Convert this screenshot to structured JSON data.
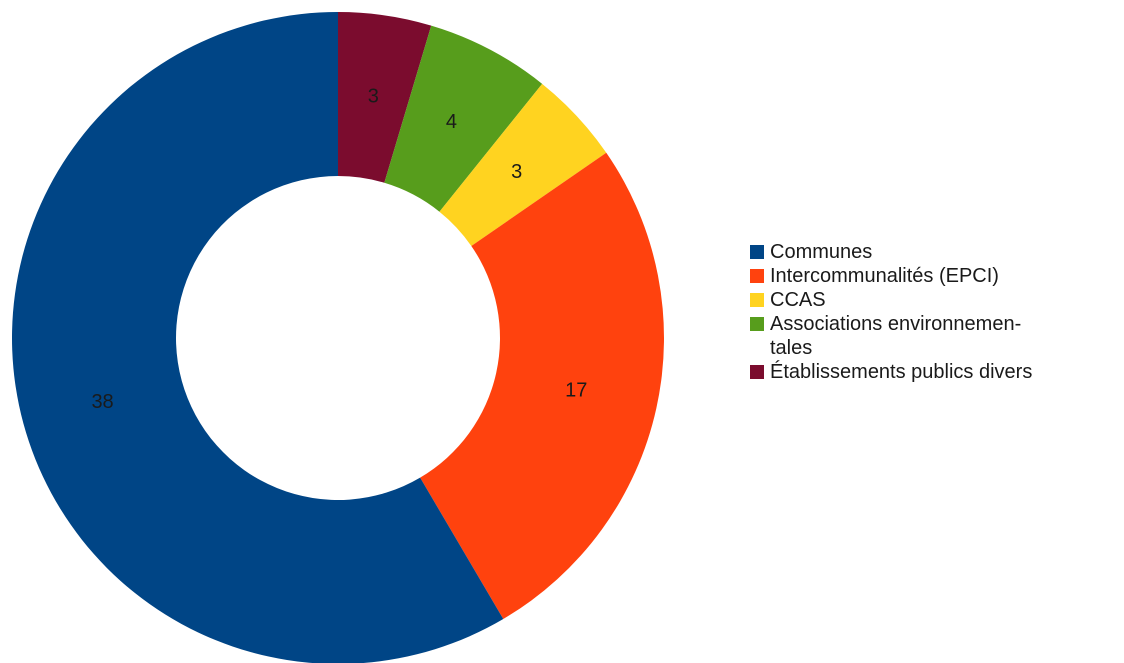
{
  "chart_data": {
    "type": "pie",
    "donut": true,
    "start_angle_deg": 0,
    "direction": "clockwise",
    "slices": [
      {
        "label": "Établissements publics divers",
        "value": 3,
        "color": "#7b0c2e"
      },
      {
        "label": "Associations environnemen-\ntales",
        "value": 4,
        "color": "#579d1c"
      },
      {
        "label": "CCAS",
        "value": 3,
        "color": "#ffd320"
      },
      {
        "label": "Intercommunalités (EPCI)",
        "value": 17,
        "color": "#ff420e"
      },
      {
        "label": "Communes",
        "value": 38,
        "color": "#004586"
      }
    ],
    "legend": {
      "placement": "right",
      "items": [
        {
          "label": "Communes",
          "color": "#004586"
        },
        {
          "label": "Intercommunalités (EPCI)",
          "color": "#ff420e"
        },
        {
          "label": "CCAS",
          "color": "#ffd320"
        },
        {
          "label": "Associations environnemen-\ntales",
          "color": "#579d1c"
        },
        {
          "label": "Établissements publics divers",
          "color": "#7b0c2e"
        }
      ]
    }
  }
}
